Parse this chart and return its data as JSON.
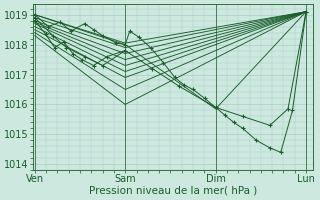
{
  "background_color": "#cce8df",
  "grid_color": "#aaccc4",
  "line_color": "#1a5c2a",
  "marker_color": "#1a5c2a",
  "title": "Pression niveau de la mer( hPa )",
  "x_tick_labels": [
    "Ven",
    "Sam",
    "Dim",
    "Lun"
  ],
  "x_tick_positions": [
    0,
    1,
    2,
    3
  ],
  "ylim": [
    1013.8,
    1019.35
  ],
  "yticks": [
    1014,
    1015,
    1016,
    1017,
    1018,
    1019
  ],
  "figsize": [
    3.2,
    2.0
  ],
  "dpi": 100,
  "series": [
    {
      "x": [
        0,
        1,
        3
      ],
      "y": [
        1019.0,
        1018.05,
        1019.1
      ],
      "markers": false
    },
    {
      "x": [
        0,
        1,
        3
      ],
      "y": [
        1018.9,
        1017.9,
        1019.1
      ],
      "markers": false
    },
    {
      "x": [
        0,
        1,
        3
      ],
      "y": [
        1018.8,
        1017.7,
        1019.1
      ],
      "markers": false
    },
    {
      "x": [
        0,
        1,
        3
      ],
      "y": [
        1018.75,
        1017.5,
        1019.1
      ],
      "markers": false
    },
    {
      "x": [
        0,
        1,
        3
      ],
      "y": [
        1018.7,
        1017.3,
        1019.1
      ],
      "markers": false
    },
    {
      "x": [
        0,
        1,
        3
      ],
      "y": [
        1018.6,
        1017.1,
        1019.1
      ],
      "markers": false
    },
    {
      "x": [
        0,
        1,
        3
      ],
      "y": [
        1018.5,
        1016.9,
        1019.1
      ],
      "markers": false
    },
    {
      "x": [
        0,
        1,
        3
      ],
      "y": [
        1018.4,
        1016.5,
        1019.1
      ],
      "markers": false
    },
    {
      "x": [
        0,
        1,
        3
      ],
      "y": [
        1018.3,
        1016.0,
        1019.1
      ],
      "markers": false
    },
    {
      "x": [
        0,
        0.15,
        0.28,
        0.4,
        0.55,
        0.65,
        0.75,
        0.9,
        1.0,
        1.05,
        1.15,
        1.28,
        1.42,
        1.55,
        1.65,
        1.75,
        1.88,
        2.0,
        2.1,
        2.2,
        2.3,
        2.45,
        2.6,
        2.72,
        2.85,
        3.0
      ],
      "y": [
        1019.0,
        1018.6,
        1018.75,
        1018.45,
        1018.7,
        1018.5,
        1018.3,
        1018.05,
        1018.0,
        1018.45,
        1018.25,
        1017.9,
        1017.4,
        1016.9,
        1016.65,
        1016.5,
        1016.2,
        1015.9,
        1015.65,
        1015.4,
        1015.2,
        1014.8,
        1014.55,
        1014.4,
        1015.8,
        1019.1
      ],
      "markers": true
    },
    {
      "x": [
        0,
        0.2,
        0.35,
        0.55,
        0.75,
        1.0,
        1.3,
        1.6,
        2.0,
        2.3,
        2.6,
        2.8,
        3.0
      ],
      "y": [
        1018.9,
        1018.3,
        1017.9,
        1017.6,
        1017.3,
        1017.8,
        1017.2,
        1016.6,
        1015.9,
        1015.6,
        1015.3,
        1015.85,
        1019.1
      ],
      "markers": true
    },
    {
      "x": [
        0,
        0.12,
        0.22,
        0.32,
        0.42,
        0.52,
        0.65,
        0.8,
        1.0
      ],
      "y": [
        1018.8,
        1018.35,
        1017.9,
        1018.1,
        1017.7,
        1017.5,
        1017.3,
        1017.6,
        1017.8
      ],
      "markers": true
    },
    {
      "x": [
        0,
        1,
        2.0,
        3.0
      ],
      "y": [
        1019.0,
        1018.0,
        1015.85,
        1019.1
      ],
      "markers": false
    }
  ]
}
